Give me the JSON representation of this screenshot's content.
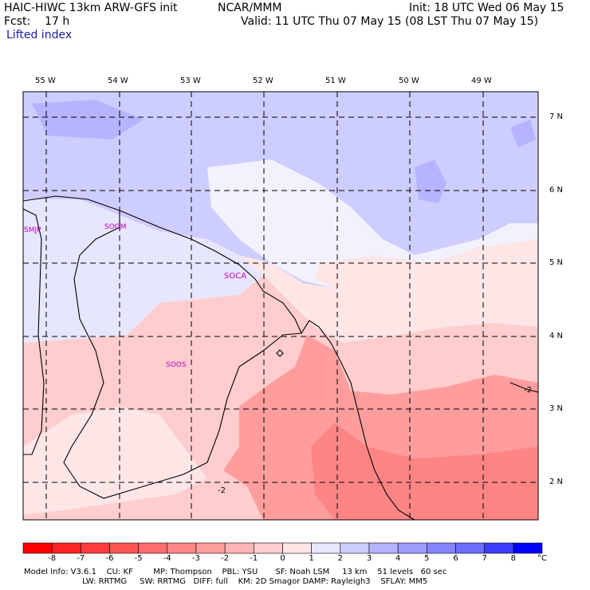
{
  "header": {
    "model": "HAIC-HIWC 13km ARW-GFS init",
    "org": "NCAR/MMM",
    "init": "Init: 18 UTC Wed 06 May 15",
    "fcst": "Fcst:    17 h",
    "valid": "Valid: 11 UTC Thu 07 May 15 (08 LST Thu 07 May 15)",
    "field": "Lifted index"
  },
  "map": {
    "lon_labels": [
      "55 W",
      "54 W",
      "53 W",
      "52 W",
      "51 W",
      "50 W",
      "49 W"
    ],
    "lat_labels": [
      "7 N",
      "6 N",
      "5 N",
      "4 N",
      "3 N",
      "2 N"
    ],
    "stations": [
      "SMJP",
      "SOGM",
      "SOCA",
      "SOOS"
    ],
    "contour_labels": [
      "-2",
      "-2"
    ]
  },
  "colorbar": {
    "ticks": [
      "-8",
      "-7",
      "-6",
      "-5",
      "-4",
      "-3",
      "-2",
      "-1",
      "0",
      "1",
      "2",
      "3",
      "4",
      "5",
      "6",
      "7",
      "8"
    ],
    "unit": "°C",
    "colors": [
      "#ff0000",
      "#ff2424",
      "#ff3d3d",
      "#ff5555",
      "#ff6d6d",
      "#ff8585",
      "#ff9d9d",
      "#ffb5b5",
      "#ffcdcd",
      "#ffe6e6",
      "#e6e6ff",
      "#cdcdff",
      "#b5b5ff",
      "#9d9dff",
      "#8585ff",
      "#6d6dff",
      "#3d3dff",
      "#0000ff"
    ]
  },
  "footer": {
    "line1": "Model Info: V3.6.1    CU: KF        MP: Thompson    PBL: YSU       SF: Noah LSM     13 km    51 levels   60 sec",
    "line2": "                       LW: RRTMG     SW: RRTMG   DIFF: full    KM: 2D Smagor DAMP: Rayleigh3    SFLAY: MM5"
  }
}
